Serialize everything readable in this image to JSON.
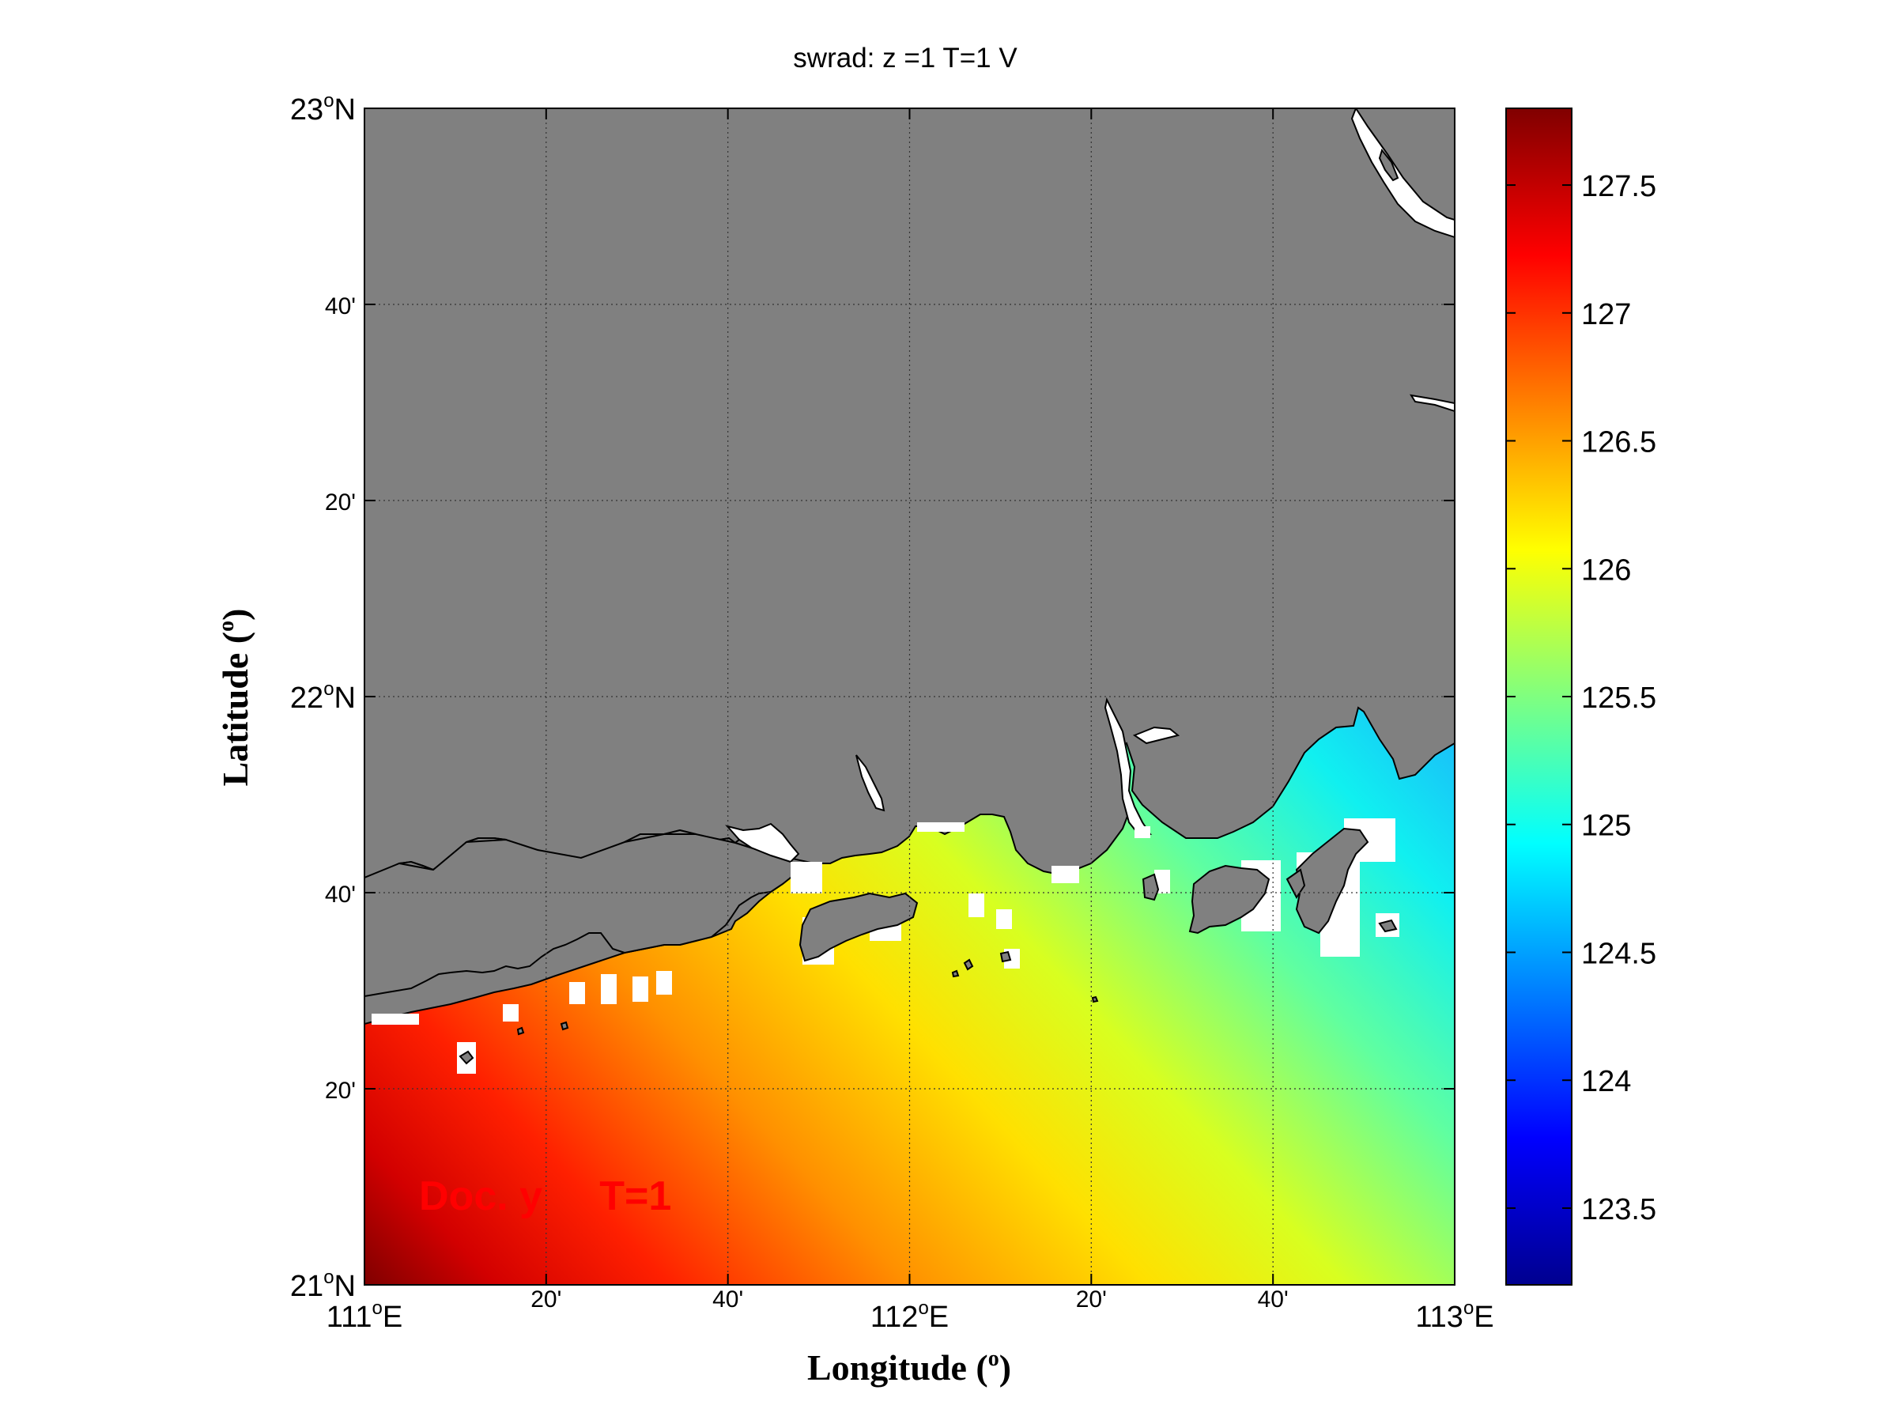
{
  "title": "swrad: z =1   T=1 V",
  "map": {
    "x_axis": {
      "label_main": "Longitude (",
      "label_sup": "o",
      "label_end": ")",
      "major_ticks": [
        {
          "value": 111,
          "deg": "111",
          "sup": "o",
          "hem": "E"
        },
        {
          "value": 112,
          "deg": "112",
          "sup": "o",
          "hem": "E"
        },
        {
          "value": 113,
          "deg": "113",
          "sup": "o",
          "hem": "E"
        }
      ],
      "minor_ticks": [
        {
          "value": 111.3333,
          "label": "20'"
        },
        {
          "value": 111.6667,
          "label": "40'"
        },
        {
          "value": 112.3333,
          "label": "20'"
        },
        {
          "value": 112.6667,
          "label": "40'"
        }
      ],
      "range": [
        111,
        113
      ]
    },
    "y_axis": {
      "label_main": "Latitude (",
      "label_sup": "o",
      "label_end": ")",
      "major_ticks": [
        {
          "value": 21,
          "deg": "21",
          "sup": "o",
          "hem": "N"
        },
        {
          "value": 22,
          "deg": "22",
          "sup": "o",
          "hem": "N"
        },
        {
          "value": 23,
          "deg": "23",
          "sup": "o",
          "hem": "N"
        }
      ],
      "minor_ticks": [
        {
          "value": 21.3333,
          "label": "20'"
        },
        {
          "value": 21.6667,
          "label": "40'"
        },
        {
          "value": 22.3333,
          "label": "20'"
        },
        {
          "value": 22.6667,
          "label": "40'"
        }
      ],
      "range": [
        21,
        23
      ]
    },
    "grid": true,
    "land_color": "#808080",
    "coastline_color": "#000000",
    "annotation": "Doc. y     T=1",
    "annotation_color": "#ff0000",
    "field": {
      "variable": "swrad",
      "min": 123.2,
      "max": 127.8,
      "high_corner": "bottom-left",
      "low_corner": "top-right"
    }
  },
  "colorbar": {
    "min": 123.2,
    "max": 127.8,
    "ticks": [
      "123.5",
      "124",
      "124.5",
      "125",
      "125.5",
      "126",
      "126.5",
      "127",
      "127.5"
    ],
    "colormap": "jet"
  }
}
